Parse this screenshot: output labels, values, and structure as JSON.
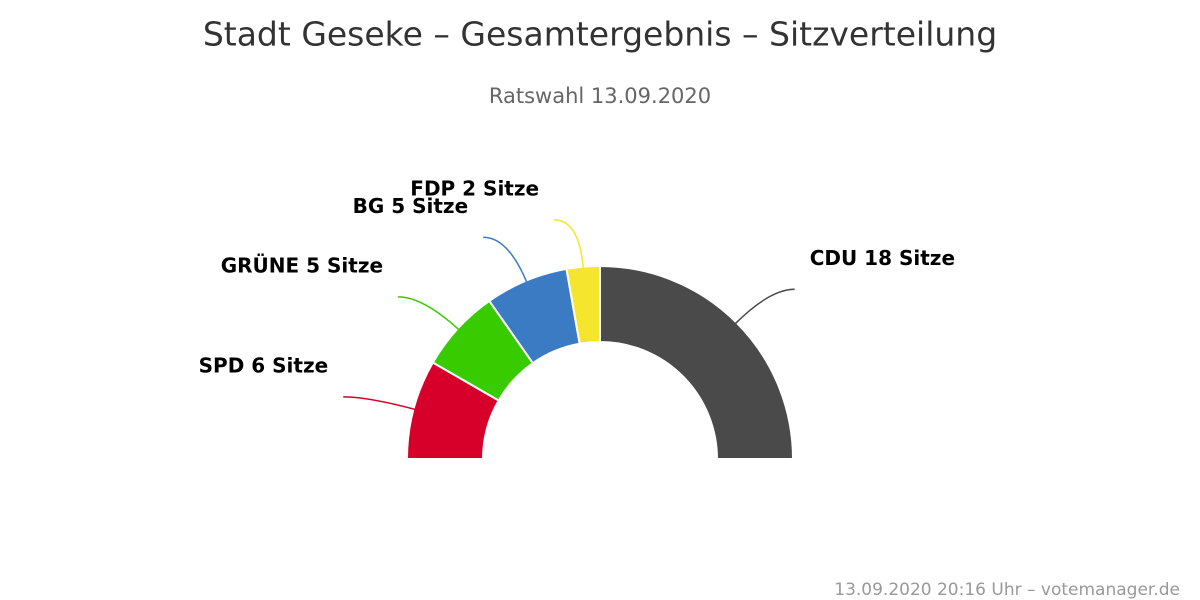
{
  "chart_data": {
    "type": "semi-donut",
    "title": "Stadt Geseke – Gesamtergebnis – Sitzverteilung",
    "subtitle": "Ratswahl 13.09.2020",
    "values": [
      6,
      5,
      5,
      2,
      18
    ],
    "value_labels": [
      "SPD 6 Sitze",
      "GRÜNE 5 Sitze",
      "BG 5 Sitze",
      "FDP 2 Sitze",
      "CDU 18 Sitze"
    ],
    "colors": [
      "#d7002a",
      "#38cc00",
      "#3a7bc4",
      "#f5e52d",
      "#4a4a4a"
    ],
    "credits": "13.09.2020 20:16 Uhr – votemanager.de"
  }
}
